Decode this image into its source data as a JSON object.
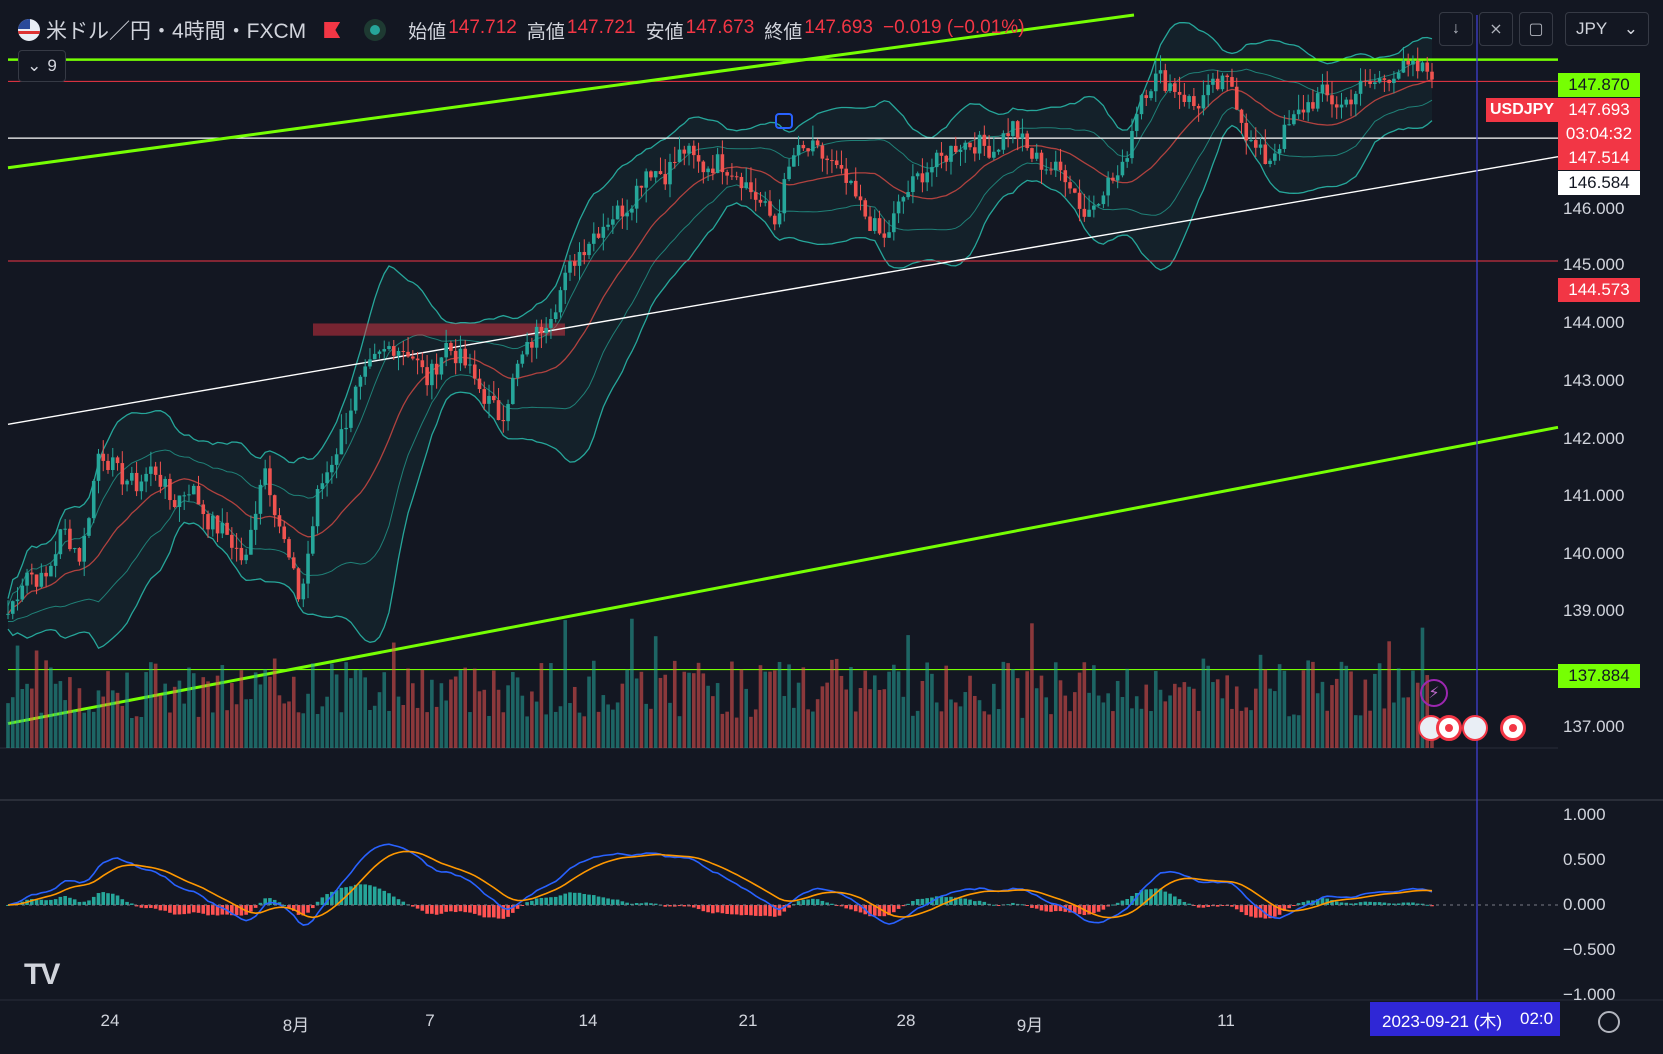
{
  "header": {
    "title": "米ドル／円・4時間・FXCM",
    "ohlc": [
      {
        "label": "始値",
        "value": "147.712"
      },
      {
        "label": "高値",
        "value": "147.721"
      },
      {
        "label": "安値",
        "value": "147.673"
      },
      {
        "label": "終値",
        "value": "147.693"
      }
    ],
    "change": "−0.019 (−0.01%)",
    "indicator_count": "9",
    "currency": "JPY"
  },
  "price_axis": {
    "ticks": [
      "146.000",
      "145.000",
      "144.000",
      "143.000",
      "142.000",
      "141.000",
      "140.000",
      "139.000",
      "137.000"
    ],
    "macd_ticks": [
      "1.000",
      "0.500",
      "0.000",
      "−0.500",
      "−1.000"
    ]
  },
  "tags": {
    "symbol": "USDJPY",
    "last_price": "147.693",
    "countdown": "03:04:32",
    "upper_green": "147.870",
    "red_level": "147.514",
    "white_level": "146.584",
    "support_red": "144.573",
    "lower_green": "137.884"
  },
  "time_axis": {
    "labels": [
      "24",
      "8月",
      "7",
      "14",
      "21",
      "28",
      "9月",
      "11"
    ],
    "cursor_date": "2023-09-21 (木)",
    "cursor_time": "02:0"
  },
  "colors": {
    "background": "#131722",
    "up": "#26a69a",
    "down": "#ef5350",
    "green_line": "#76ff03",
    "red_line": "#f23645",
    "macd_line": "#2962ff",
    "signal_line": "#ff9800",
    "bb_band": "#26a69a"
  },
  "chart_data": {
    "type": "candlestick",
    "symbol": "USDJPY",
    "timeframe": "4h",
    "ylim": [
      136.6,
      148.6
    ],
    "close_path": [
      138.8,
      139.5,
      139.3,
      140.2,
      139.7,
      141.5,
      141.1,
      140.9,
      141.2,
      140.6,
      140.9,
      140.3,
      140.1,
      139.6,
      141.3,
      140.1,
      139.0,
      140.8,
      141.5,
      142.4,
      142.9,
      143.2,
      143.1,
      142.6,
      143.2,
      142.9,
      142.4,
      142.0,
      142.9,
      143.4,
      143.9,
      144.6,
      145.0,
      145.3,
      145.5,
      146.1,
      146.0,
      146.4,
      146.1,
      146.2,
      146.0,
      145.6,
      145.2,
      146.3,
      146.4,
      146.2,
      145.8,
      145.3,
      144.9,
      145.6,
      146.0,
      146.2,
      146.5,
      146.5,
      146.4,
      146.8,
      146.3,
      146.1,
      146.0,
      145.3,
      145.8,
      146.0,
      147.3,
      147.6,
      147.4,
      147.1,
      147.4,
      147.5,
      146.5,
      146.2,
      146.7,
      147.1,
      147.3,
      147.1,
      147.4,
      147.5,
      147.7,
      147.7,
      147.69
    ],
    "macd_ylim": [
      -1.0,
      1.0
    ]
  }
}
